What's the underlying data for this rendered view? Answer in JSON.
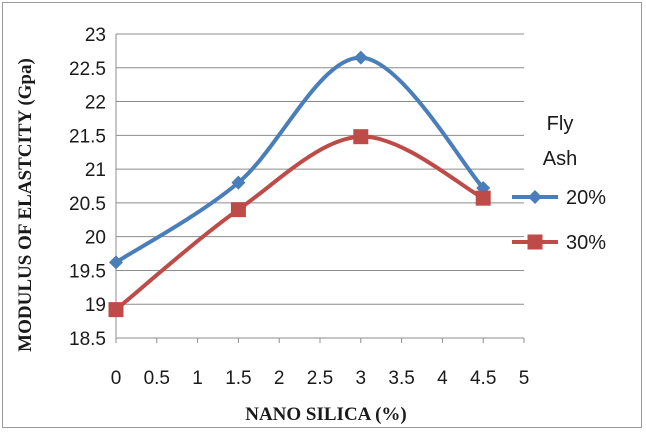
{
  "chart_data": {
    "type": "line",
    "smooth": true,
    "title": "",
    "xlabel": "NANO SILICA (%)",
    "ylabel": "MODULUS OF ELASTCITY (Gpa)",
    "xlim": [
      0,
      5
    ],
    "ylim": [
      18.5,
      23
    ],
    "x_ticks": [
      "0",
      "0.5",
      "1",
      "1.5",
      "2",
      "2.5",
      "3",
      "3.5",
      "4",
      "4.5",
      "5"
    ],
    "y_ticks": [
      "18.5",
      "19",
      "19.5",
      "20",
      "20.5",
      "21",
      "21.5",
      "22",
      "22.5",
      "23"
    ],
    "grid": true,
    "legend_title": "Fly Ash",
    "legend_position": "right",
    "series": [
      {
        "name": "20%",
        "color": "#4a7ebb",
        "marker": "diamond",
        "x": [
          0,
          1.5,
          3,
          4.5
        ],
        "y": [
          19.62,
          20.8,
          22.65,
          20.72
        ]
      },
      {
        "name": "30%",
        "color": "#be4b48",
        "marker": "square",
        "x": [
          0,
          1.5,
          3,
          4.5
        ],
        "y": [
          18.92,
          20.4,
          21.48,
          20.57
        ]
      }
    ]
  }
}
